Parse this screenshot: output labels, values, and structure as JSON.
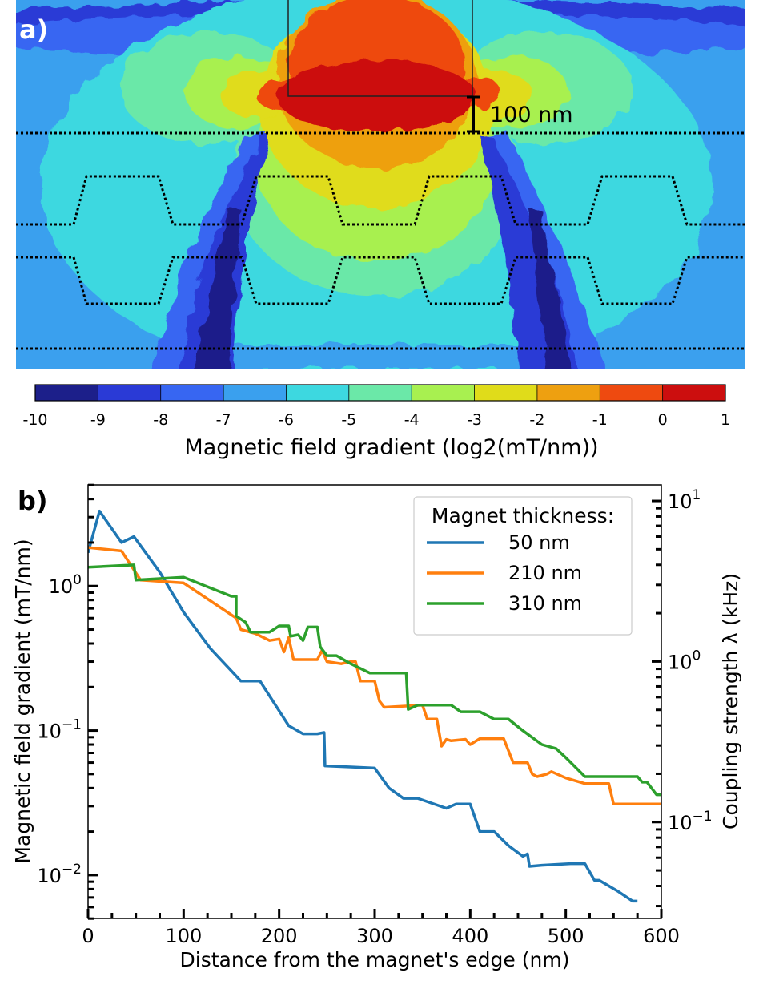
{
  "panel_a": {
    "label": "a)",
    "scale_label": "100 nm",
    "colorbar": {
      "label": "Magnetic field gradient (log2(mT/nm))",
      "ticks": [
        "-10",
        "-9",
        "-8",
        "-7",
        "-6",
        "-5",
        "-4",
        "-3",
        "-2",
        "-1",
        "0",
        "1"
      ],
      "colors": [
        "#1c1f8a",
        "#2a3ad6",
        "#3766f2",
        "#3aa0ee",
        "#3dd8e0",
        "#6be8a8",
        "#a8f050",
        "#e0dc1a",
        "#eea010",
        "#ee4a10",
        "#cc0e0e"
      ]
    }
  },
  "chart_data": {
    "type": "line",
    "panel_label": "b)",
    "xlabel": "Distance from the magnet's edge (nm)",
    "ylabel": "Magnetic field gradient (mT/nm)",
    "ylabel_right": "Coupling strength λ (kHz)",
    "xlim": [
      0,
      600
    ],
    "ylim_log10": [
      -2.3,
      0.7
    ],
    "ylim_right_log10": [
      -1.6,
      1.1
    ],
    "x_ticks": [
      "0",
      "100",
      "200",
      "300",
      "400",
      "500",
      "600"
    ],
    "y_ticks": [
      {
        "value": 1,
        "base": "10",
        "exp": "0"
      },
      {
        "value": 0.1,
        "base": "10",
        "exp": "−1"
      },
      {
        "value": 0.01,
        "base": "10",
        "exp": "−2"
      }
    ],
    "y_ticks_right": [
      {
        "value": 10,
        "base": "10",
        "exp": "1"
      },
      {
        "value": 1,
        "base": "10",
        "exp": "0"
      },
      {
        "value": 0.1,
        "base": "10",
        "exp": "−1"
      }
    ],
    "legend": {
      "title": "Magnet thickness:",
      "position": "top-right"
    },
    "series": [
      {
        "name": "50 nm",
        "color": "#1f77b4",
        "points": [
          [
            0,
            1.7
          ],
          [
            12,
            3.3
          ],
          [
            35,
            2.0
          ],
          [
            48,
            2.2
          ],
          [
            75,
            1.25
          ],
          [
            100,
            0.66
          ],
          [
            128,
            0.37
          ],
          [
            160,
            0.22
          ],
          [
            180,
            0.22
          ],
          [
            210,
            0.108
          ],
          [
            225,
            0.095
          ],
          [
            240,
            0.095
          ],
          [
            247,
            0.097
          ],
          [
            248,
            0.057
          ],
          [
            275,
            0.056
          ],
          [
            300,
            0.055
          ],
          [
            315,
            0.04
          ],
          [
            330,
            0.034
          ],
          [
            345,
            0.034
          ],
          [
            375,
            0.029
          ],
          [
            385,
            0.031
          ],
          [
            400,
            0.031
          ],
          [
            410,
            0.02
          ],
          [
            425,
            0.02
          ],
          [
            440,
            0.016
          ],
          [
            455,
            0.0135
          ],
          [
            460,
            0.014
          ],
          [
            462,
            0.0115
          ],
          [
            475,
            0.0117
          ],
          [
            505,
            0.012
          ],
          [
            520,
            0.012
          ],
          [
            530,
            0.0092
          ],
          [
            535,
            0.0092
          ],
          [
            555,
            0.0077
          ],
          [
            570,
            0.0066
          ],
          [
            575,
            0.0066
          ]
        ]
      },
      {
        "name": "210 nm",
        "color": "#ff7f0e",
        "points": [
          [
            0,
            1.85
          ],
          [
            35,
            1.75
          ],
          [
            55,
            1.1
          ],
          [
            100,
            1.05
          ],
          [
            155,
            0.6
          ],
          [
            160,
            0.5
          ],
          [
            175,
            0.47
          ],
          [
            190,
            0.42
          ],
          [
            200,
            0.43
          ],
          [
            205,
            0.35
          ],
          [
            210,
            0.44
          ],
          [
            215,
            0.31
          ],
          [
            240,
            0.31
          ],
          [
            245,
            0.36
          ],
          [
            250,
            0.3
          ],
          [
            265,
            0.29
          ],
          [
            275,
            0.3
          ],
          [
            280,
            0.3
          ],
          [
            285,
            0.22
          ],
          [
            300,
            0.22
          ],
          [
            305,
            0.16
          ],
          [
            310,
            0.145
          ],
          [
            350,
            0.15
          ],
          [
            355,
            0.12
          ],
          [
            365,
            0.12
          ],
          [
            370,
            0.078
          ],
          [
            375,
            0.087
          ],
          [
            380,
            0.085
          ],
          [
            395,
            0.087
          ],
          [
            400,
            0.08
          ],
          [
            410,
            0.088
          ],
          [
            435,
            0.088
          ],
          [
            445,
            0.06
          ],
          [
            460,
            0.06
          ],
          [
            465,
            0.05
          ],
          [
            470,
            0.048
          ],
          [
            480,
            0.05
          ],
          [
            485,
            0.052
          ],
          [
            500,
            0.047
          ],
          [
            520,
            0.043
          ],
          [
            545,
            0.043
          ],
          [
            550,
            0.031
          ],
          [
            580,
            0.031
          ],
          [
            600,
            0.031
          ]
        ]
      },
      {
        "name": "310 nm",
        "color": "#2ca02c",
        "points": [
          [
            0,
            1.35
          ],
          [
            48,
            1.4
          ],
          [
            50,
            1.1
          ],
          [
            100,
            1.15
          ],
          [
            150,
            0.85
          ],
          [
            155,
            0.85
          ],
          [
            155,
            0.62
          ],
          [
            165,
            0.56
          ],
          [
            170,
            0.48
          ],
          [
            190,
            0.48
          ],
          [
            200,
            0.53
          ],
          [
            210,
            0.53
          ],
          [
            212,
            0.45
          ],
          [
            220,
            0.46
          ],
          [
            225,
            0.42
          ],
          [
            230,
            0.52
          ],
          [
            240,
            0.52
          ],
          [
            243,
            0.38
          ],
          [
            250,
            0.33
          ],
          [
            260,
            0.33
          ],
          [
            275,
            0.29
          ],
          [
            295,
            0.25
          ],
          [
            320,
            0.25
          ],
          [
            333,
            0.25
          ],
          [
            335,
            0.14
          ],
          [
            345,
            0.15
          ],
          [
            380,
            0.15
          ],
          [
            390,
            0.135
          ],
          [
            410,
            0.135
          ],
          [
            425,
            0.12
          ],
          [
            440,
            0.12
          ],
          [
            455,
            0.1
          ],
          [
            475,
            0.08
          ],
          [
            490,
            0.075
          ],
          [
            500,
            0.065
          ],
          [
            520,
            0.048
          ],
          [
            575,
            0.048
          ],
          [
            580,
            0.044
          ],
          [
            585,
            0.044
          ],
          [
            595,
            0.036
          ],
          [
            600,
            0.036
          ]
        ]
      }
    ]
  }
}
